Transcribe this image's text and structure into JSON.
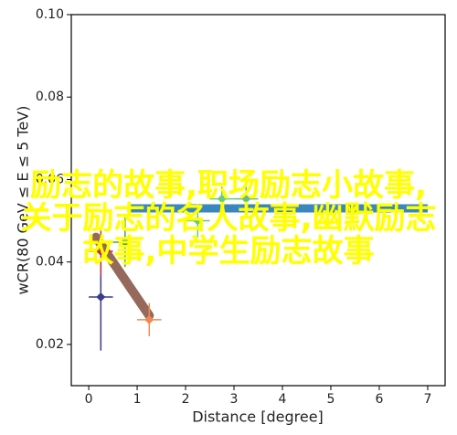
{
  "chart_data": {
    "type": "errorbar",
    "xlabel": "Distance [degree]",
    "ylabel": "wCR(80 GeV ≤ E ≤ 5 TeV)",
    "xlim": [
      -0.36,
      7.36
    ],
    "ylim": [
      0.01,
      0.1
    ],
    "xticks": [
      0,
      1,
      2,
      3,
      4,
      5,
      6,
      7
    ],
    "yticks": [
      {
        "value": 0.02,
        "label": "0.02"
      },
      {
        "value": 0.04,
        "label": "0.04"
      },
      {
        "value": 0.06,
        "label": "0.06"
      },
      {
        "value": 0.08,
        "label": "0.08"
      },
      {
        "value": 0.1,
        "label": "0.10"
      }
    ],
    "band": {
      "x": [
        0.8,
        7.0
      ],
      "y": 0.053,
      "color": "#3a87c0"
    },
    "trend": {
      "x": [
        0.15,
        1.25
      ],
      "y": [
        0.046,
        0.027
      ],
      "color": "#8a5a4a"
    },
    "points": [
      {
        "x": 0.25,
        "y": 0.0315,
        "xerr": 0.25,
        "yerr": 0.013,
        "color": "#3b3b8a"
      },
      {
        "x": 0.25,
        "y": 0.0426,
        "xerr": 0.25,
        "yerr": 0.006,
        "color": "#c0304a"
      },
      {
        "x": 0.75,
        "y": 0.0448,
        "xerr": 0.25,
        "yerr": 0.006,
        "color": "#4c9e6c"
      },
      {
        "x": 1.25,
        "y": 0.026,
        "xerr": 0.25,
        "yerr": 0.004,
        "color": "#f08a50"
      },
      {
        "x": 2.25,
        "y": 0.05,
        "xerr": 0.25,
        "yerr": 0.004,
        "color": "#66cc77"
      },
      {
        "x": 2.75,
        "y": 0.0553,
        "xerr": 0.25,
        "yerr": 0.003,
        "color": "#66cc77"
      },
      {
        "x": 3.25,
        "y": 0.0553,
        "xerr": 0.25,
        "yerr": 0.003,
        "color": "#66bb88"
      }
    ]
  },
  "overlay": {
    "lines": [
      "励志的故事,职场励志小故事,",
      "关于励志的名人故事,幽默励志",
      "故事,中学生励志故事"
    ]
  }
}
